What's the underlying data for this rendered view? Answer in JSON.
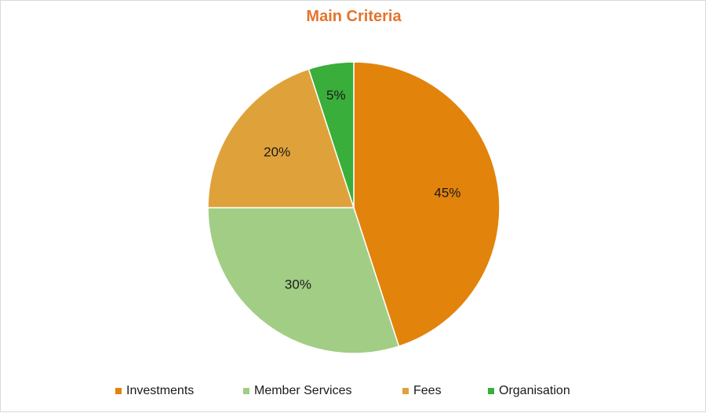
{
  "chart_data": {
    "type": "pie",
    "title": "Main Criteria",
    "categories": [
      "Investments",
      "Member Services",
      "Fees",
      "Organisation"
    ],
    "values": [
      45,
      30,
      20,
      5
    ],
    "labels": [
      "45%",
      "30%",
      "20%",
      "5%"
    ],
    "colors": [
      "#e2830b",
      "#a2cd85",
      "#dfa23b",
      "#3aae3a"
    ],
    "start_angle_deg": 0,
    "direction": "clockwise",
    "legend_position": "bottom"
  }
}
